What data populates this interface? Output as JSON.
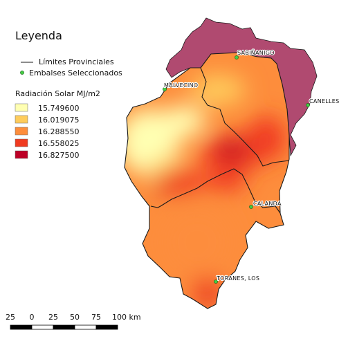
{
  "legend": {
    "title": "Leyenda",
    "boundaries_label": "Límites Provinciales",
    "reservoirs_label": "Embalses Seleccionados",
    "radiation_title": "Radiación Solar MJ/m2",
    "classes": [
      {
        "value": "15.749600",
        "color": "#ffffb2"
      },
      {
        "value": "16.019075",
        "color": "#fecc5c"
      },
      {
        "value": "16.288550",
        "color": "#fd8d3c"
      },
      {
        "value": "16.558025",
        "color": "#f03b20"
      },
      {
        "value": "16.827500",
        "color": "#bd0026"
      }
    ]
  },
  "reservoirs": [
    {
      "name": "SABIÑANIGO"
    },
    {
      "name": "MALVECINO"
    },
    {
      "name": "CANELLES"
    },
    {
      "name": "CALANDA"
    },
    {
      "name": "TORANES, LOS"
    }
  ],
  "scale_bar": {
    "ticks": [
      "25",
      "0",
      "25",
      "50",
      "75",
      "100 km"
    ]
  },
  "colors": {
    "outside_area": "#b04a70",
    "boundary": "#1a1a1a",
    "reservoir_fill": "#44cc44"
  }
}
